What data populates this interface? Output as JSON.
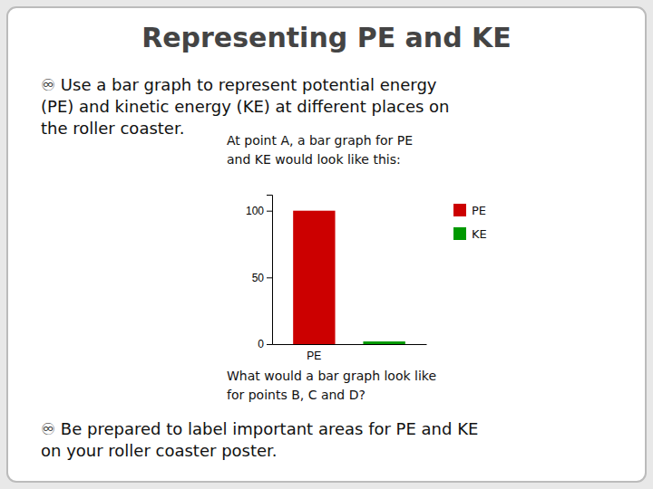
{
  "chart_data": {
    "type": "bar",
    "title": "Representing PE and KE",
    "annotations": [
      "♾ Use a bar graph to represent potential energy\n(PE) and kinetic energy (KE) at different places on\nthe roller coaster.",
      "At point A, a bar graph for PE\nand KE would look like this:",
      "What would a bar graph look like\nfor points B, C and D?",
      "♾ Be prepared to label important areas for PE and KE\non your roller coaster poster."
    ],
    "categories": [
      "PE",
      null
    ],
    "series": [
      {
        "name": "PE",
        "color": "#cc0000",
        "values": [
          100,
          null
        ]
      },
      {
        "name": "KE",
        "color": "#009900",
        "values": [
          null,
          2
        ]
      }
    ],
    "ylim": [
      0,
      112
    ],
    "yticks": [
      0,
      50,
      100
    ],
    "legend": "upper right"
  }
}
